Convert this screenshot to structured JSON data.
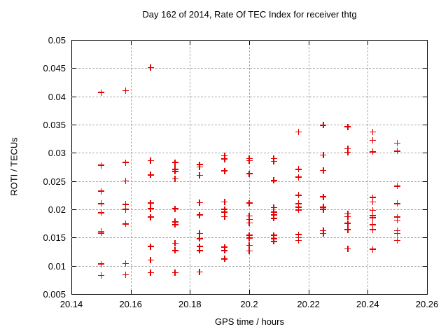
{
  "title": "Day 162 of 2014, Rate Of TEC Index for receiver thtg",
  "x_axis": {
    "label": "GPS time / hours",
    "min": 20.14,
    "max": 20.26,
    "ticks": [
      20.14,
      20.16,
      20.18,
      20.2,
      20.22,
      20.24,
      20.26
    ],
    "tick_labels": [
      "20.14",
      "20.16",
      "20.18",
      "20.2",
      "20.22",
      "20.24",
      "20.26"
    ]
  },
  "y_axis": {
    "label": "ROTI / TECUs",
    "min": 0.005,
    "max": 0.05,
    "ticks": [
      0.005,
      0.01,
      0.015,
      0.02,
      0.025,
      0.03,
      0.035,
      0.04,
      0.045,
      0.05
    ],
    "tick_labels": [
      "0.005",
      "0.01",
      "0.015",
      "0.02",
      "0.025",
      "0.03",
      "0.035",
      "0.04",
      "0.045",
      "0.05"
    ]
  },
  "colors": {
    "marker": "#e60000",
    "frame": "#000000",
    "grid": "#a8a8a8",
    "background": "#ffffff"
  },
  "chart_data": {
    "type": "scatter",
    "marker": "plus",
    "marker_color": "#e60000",
    "grid": true,
    "legend": false,
    "xlim": [
      20.14,
      20.26
    ],
    "ylim": [
      0.005,
      0.05
    ],
    "title": "Day 162 of 2014, Rate Of TEC Index for receiver thtg",
    "xlabel": "GPS time / hours",
    "ylabel": "ROTI / TECUs",
    "series": [
      {
        "name": "ROTI",
        "points": [
          [
            20.15,
            0.0407
          ],
          [
            20.15,
            0.0278
          ],
          [
            20.15,
            0.0232
          ],
          [
            20.15,
            0.021
          ],
          [
            20.15,
            0.0194
          ],
          [
            20.15,
            0.0161
          ],
          [
            20.15,
            0.0158
          ],
          [
            20.15,
            0.0103
          ],
          [
            20.15,
            0.0083
          ],
          [
            20.1583,
            0.041
          ],
          [
            20.1583,
            0.0283
          ],
          [
            20.1583,
            0.025
          ],
          [
            20.1583,
            0.0209
          ],
          [
            20.1583,
            0.02
          ],
          [
            20.1583,
            0.0174
          ],
          [
            20.1583,
            0.0104
          ],
          [
            20.1583,
            0.0084
          ],
          [
            20.1667,
            0.0451
          ],
          [
            20.1667,
            0.0286
          ],
          [
            20.1667,
            0.0261
          ],
          [
            20.1667,
            0.0211
          ],
          [
            20.1667,
            0.0201
          ],
          [
            20.1667,
            0.0186
          ],
          [
            20.1667,
            0.0134
          ],
          [
            20.1667,
            0.011
          ],
          [
            20.1667,
            0.0088
          ],
          [
            20.175,
            0.0283
          ],
          [
            20.175,
            0.0271
          ],
          [
            20.175,
            0.0267
          ],
          [
            20.175,
            0.0254
          ],
          [
            20.175,
            0.0201
          ],
          [
            20.175,
            0.0178
          ],
          [
            20.175,
            0.0173
          ],
          [
            20.175,
            0.014
          ],
          [
            20.175,
            0.0127
          ],
          [
            20.175,
            0.0088
          ],
          [
            20.1833,
            0.0279
          ],
          [
            20.1833,
            0.0275
          ],
          [
            20.1833,
            0.026
          ],
          [
            20.1833,
            0.0212
          ],
          [
            20.1833,
            0.019
          ],
          [
            20.1833,
            0.0157
          ],
          [
            20.1833,
            0.0148
          ],
          [
            20.1833,
            0.0134
          ],
          [
            20.1833,
            0.0127
          ],
          [
            20.1833,
            0.0089
          ],
          [
            20.1917,
            0.0295
          ],
          [
            20.1917,
            0.0289
          ],
          [
            20.1917,
            0.0268
          ],
          [
            20.1917,
            0.0213
          ],
          [
            20.1917,
            0.02
          ],
          [
            20.1917,
            0.0195
          ],
          [
            20.1917,
            0.0187
          ],
          [
            20.1917,
            0.0133
          ],
          [
            20.1917,
            0.0127
          ],
          [
            20.1917,
            0.0112
          ],
          [
            20.2,
            0.029
          ],
          [
            20.2,
            0.0286
          ],
          [
            20.2,
            0.0263
          ],
          [
            20.2,
            0.0211
          ],
          [
            20.2,
            0.0188
          ],
          [
            20.2,
            0.0182
          ],
          [
            20.2,
            0.0176
          ],
          [
            20.2,
            0.0154
          ],
          [
            20.2,
            0.0149
          ],
          [
            20.2,
            0.0136
          ],
          [
            20.2,
            0.0126
          ],
          [
            20.2083,
            0.029
          ],
          [
            20.2083,
            0.0285
          ],
          [
            20.2083,
            0.0251
          ],
          [
            20.2083,
            0.0203
          ],
          [
            20.2083,
            0.0195
          ],
          [
            20.2083,
            0.019
          ],
          [
            20.2083,
            0.0184
          ],
          [
            20.2083,
            0.0154
          ],
          [
            20.2083,
            0.0148
          ],
          [
            20.2083,
            0.0143
          ],
          [
            20.2167,
            0.0337
          ],
          [
            20.2167,
            0.0271
          ],
          [
            20.2167,
            0.0257
          ],
          [
            20.2167,
            0.0225
          ],
          [
            20.2167,
            0.021
          ],
          [
            20.2167,
            0.0204
          ],
          [
            20.2167,
            0.0199
          ],
          [
            20.2167,
            0.0155
          ],
          [
            20.2167,
            0.015
          ],
          [
            20.2167,
            0.0145
          ],
          [
            20.225,
            0.0349
          ],
          [
            20.225,
            0.0296
          ],
          [
            20.225,
            0.0269
          ],
          [
            20.225,
            0.0222
          ],
          [
            20.225,
            0.0204
          ],
          [
            20.225,
            0.02
          ],
          [
            20.225,
            0.0162
          ],
          [
            20.225,
            0.0157
          ],
          [
            20.2333,
            0.0346
          ],
          [
            20.2333,
            0.0307
          ],
          [
            20.2333,
            0.0301
          ],
          [
            20.2333,
            0.0192
          ],
          [
            20.2333,
            0.0187
          ],
          [
            20.2333,
            0.0175
          ],
          [
            20.2333,
            0.0164
          ],
          [
            20.2333,
            0.013
          ],
          [
            20.2417,
            0.0337
          ],
          [
            20.2417,
            0.0322
          ],
          [
            20.2417,
            0.0302
          ],
          [
            20.2417,
            0.0221
          ],
          [
            20.2417,
            0.0213
          ],
          [
            20.2417,
            0.0198
          ],
          [
            20.2417,
            0.0189
          ],
          [
            20.2417,
            0.0185
          ],
          [
            20.2417,
            0.0173
          ],
          [
            20.2417,
            0.0164
          ],
          [
            20.2417,
            0.0129
          ],
          [
            20.25,
            0.0317
          ],
          [
            20.25,
            0.0303
          ],
          [
            20.25,
            0.0241
          ],
          [
            20.25,
            0.021
          ],
          [
            20.25,
            0.0186
          ],
          [
            20.25,
            0.0181
          ],
          [
            20.25,
            0.0162
          ],
          [
            20.25,
            0.0157
          ],
          [
            20.25,
            0.0145
          ]
        ]
      }
    ]
  }
}
